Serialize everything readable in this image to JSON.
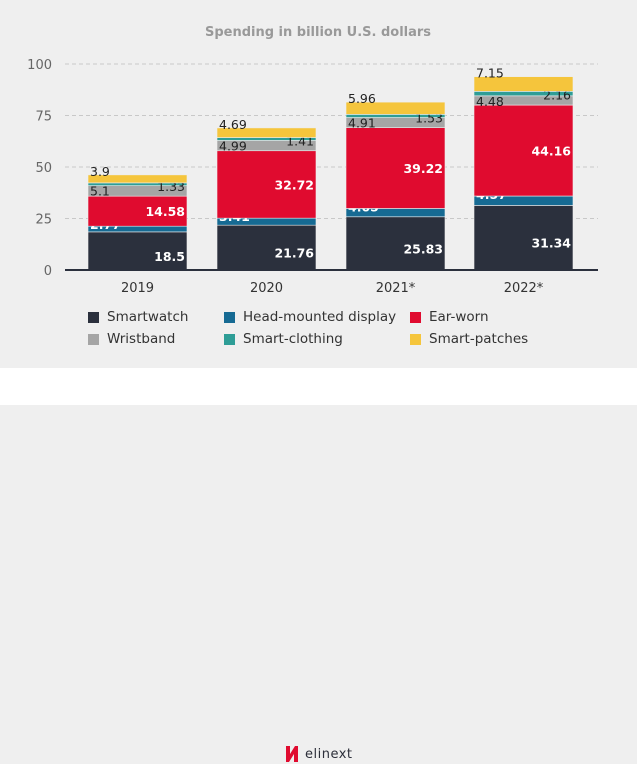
{
  "chart_data": {
    "type": "bar",
    "stacked": true,
    "title": "Spending in billion U.S. dollars",
    "categories": [
      "2019",
      "2020",
      "2021*",
      "2022*"
    ],
    "ylim": [
      0,
      100
    ],
    "yticks": [
      0,
      25,
      50,
      75,
      100
    ],
    "grid": true,
    "legend_placement": "bottom",
    "series": [
      {
        "name": "Smartwatch",
        "color": "#2b303d",
        "values": [
          18.5,
          21.76,
          25.83,
          31.34
        ]
      },
      {
        "name": "Head-mounted display",
        "color": "#166a93",
        "values": [
          2.77,
          3.41,
          4.05,
          4.57
        ]
      },
      {
        "name": "Ear-worn",
        "color": "#e00b2f",
        "values": [
          14.58,
          32.72,
          39.22,
          44.16
        ]
      },
      {
        "name": "Wristband",
        "color": "#a5a5a5",
        "values": [
          5.1,
          4.99,
          4.91,
          4.48
        ]
      },
      {
        "name": "Smart-clothing",
        "color": "#2e9d96",
        "values": [
          1.33,
          1.41,
          1.53,
          2.16
        ]
      },
      {
        "name": "Smart-patches",
        "color": "#f5c53c",
        "values": [
          3.9,
          4.69,
          5.96,
          7.15
        ]
      }
    ]
  },
  "footer": {
    "logo": "elinext"
  }
}
